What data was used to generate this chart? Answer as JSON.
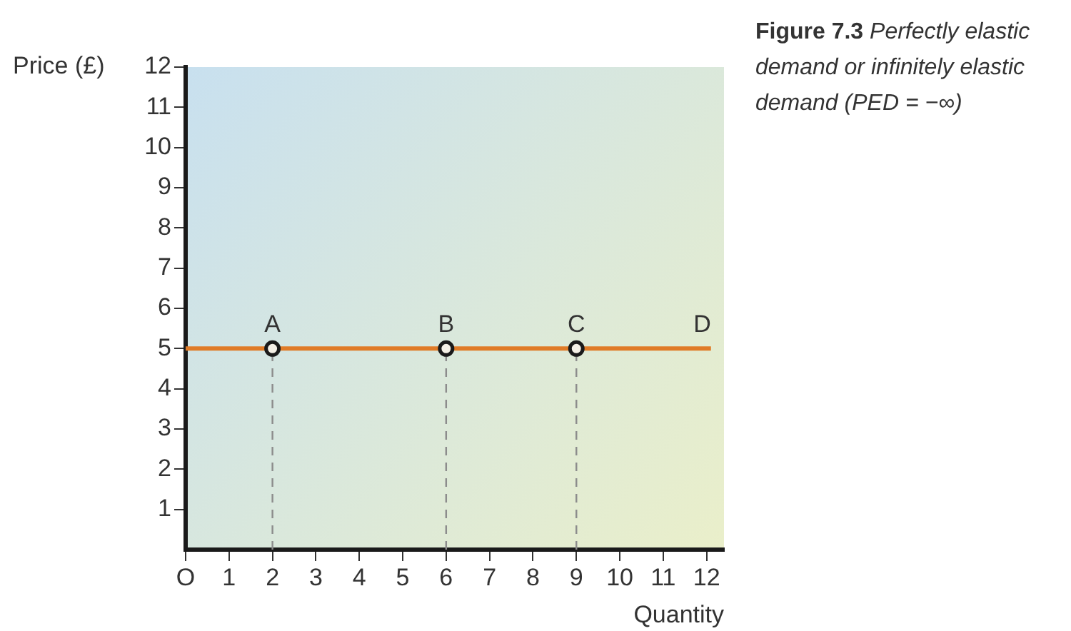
{
  "chart_data": {
    "type": "line",
    "title": "Figure 7.3",
    "subtitle": "Perfectly elastic demand or infinitely elastic demand (PED = −∞)",
    "xlabel": "Quantity",
    "ylabel": "Price (£)",
    "xlim": [
      0,
      12.4
    ],
    "ylim": [
      0,
      12
    ],
    "xticks": [
      {
        "value": 0,
        "label": "O"
      },
      1,
      2,
      3,
      4,
      5,
      6,
      7,
      8,
      9,
      10,
      11,
      12
    ],
    "yticks": [
      1,
      2,
      3,
      4,
      5,
      6,
      7,
      8,
      9,
      10,
      11,
      12
    ],
    "series": [
      {
        "name": "D",
        "color": "#e07b27",
        "x": [
          0,
          12.1
        ],
        "values": [
          5,
          5
        ],
        "marker": "none",
        "line_style": "solid"
      },
      {
        "color": "#8c8c8c",
        "x": [
          2,
          2
        ],
        "values": [
          0,
          5
        ],
        "marker": "none",
        "line_style": "dashed"
      },
      {
        "color": "#8c8c8c",
        "x": [
          6,
          6
        ],
        "values": [
          0,
          5
        ],
        "marker": "none",
        "line_style": "dashed"
      },
      {
        "color": "#8c8c8c",
        "x": [
          9,
          9
        ],
        "values": [
          0,
          5
        ],
        "marker": "none",
        "line_style": "dashed"
      },
      {
        "type": "scatter",
        "color": "#1a1a1a",
        "x": [
          2,
          6,
          9
        ],
        "values": [
          5,
          5,
          5
        ],
        "marker": "circle"
      }
    ],
    "annotations": [
      {
        "text": "A",
        "x": 2,
        "y": 5
      },
      {
        "text": "B",
        "x": 6,
        "y": 5
      },
      {
        "text": "C",
        "x": 9,
        "y": 5
      }
    ]
  }
}
